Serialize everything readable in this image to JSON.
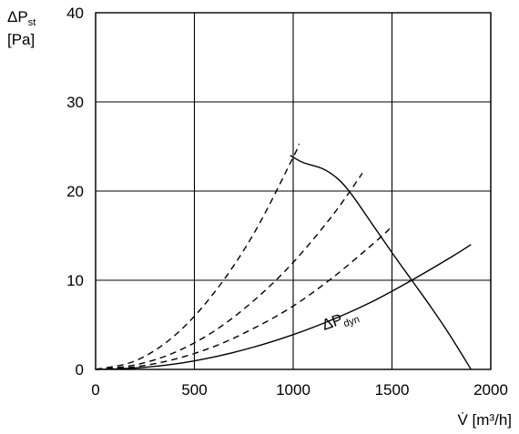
{
  "chart_data": {
    "type": "line",
    "ylabel_main": "ΔP",
    "ylabel_sub": "st",
    "ylabel_unit": "[Pa]",
    "xlabel": "V̇ [m³/h]",
    "annotation_main": "ΔP",
    "annotation_sub": "dyn",
    "xlim": [
      0,
      2000
    ],
    "ylim": [
      0,
      40
    ],
    "xticks": [
      "0",
      "500",
      "1000",
      "1500",
      "2000"
    ],
    "yticks": [
      "0",
      "10",
      "20",
      "30",
      "40"
    ],
    "grid": true,
    "series": [
      {
        "style": "solid",
        "x": [
          985,
          1050,
          1150,
          1230,
          1300,
          1400,
          1500,
          1600,
          1700,
          1800,
          1900
        ],
        "y": [
          24,
          23.2,
          22.5,
          21.3,
          19.5,
          16.3,
          13.1,
          10,
          6.9,
          3.6,
          0
        ]
      },
      {
        "style": "solid",
        "x": [
          0,
          200,
          400,
          600,
          800,
          1000,
          1200,
          1400,
          1600,
          1800,
          1900
        ],
        "y": [
          0,
          0.15,
          0.6,
          1.4,
          2.5,
          3.9,
          5.6,
          7.6,
          10,
          12.6,
          14
        ]
      },
      {
        "style": "dashed",
        "x": [
          0,
          200,
          400,
          600,
          800,
          1000,
          1030
        ],
        "y": [
          0,
          0.95,
          3.8,
          8.6,
          15.2,
          23.8,
          25.3
        ]
      },
      {
        "style": "dashed",
        "x": [
          0,
          200,
          400,
          600,
          800,
          1000,
          1200,
          1350
        ],
        "y": [
          0,
          0.5,
          1.9,
          4.3,
          7.7,
          12,
          17.3,
          22
        ]
      },
      {
        "style": "dashed",
        "x": [
          0,
          200,
          400,
          600,
          800,
          1000,
          1200,
          1400,
          1490
        ],
        "y": [
          0,
          0.29,
          1.14,
          2.57,
          4.6,
          7.1,
          10.3,
          14,
          15.8
        ]
      }
    ]
  }
}
